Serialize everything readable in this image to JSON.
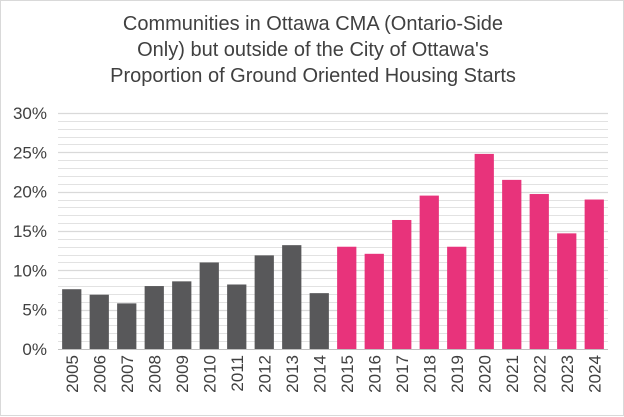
{
  "chart_data": {
    "type": "bar",
    "title_lines": [
      "Communities in Ottawa CMA (Ontario-Side",
      "Only) but outside of the City of Ottawa's",
      "Proportion of Ground Oriented Housing Starts"
    ],
    "xlabel": "",
    "ylabel": "",
    "ylim": [
      0,
      30
    ],
    "yticks": [
      0,
      5,
      10,
      15,
      20,
      25,
      30
    ],
    "ytick_labels": [
      "0%",
      "5%",
      "10%",
      "15%",
      "20%",
      "25%",
      "30%"
    ],
    "grid": true,
    "legend": "none",
    "categories": [
      "2005",
      "2006",
      "2007",
      "2008",
      "2009",
      "2010",
      "2011",
      "2012",
      "2013",
      "2014",
      "2015",
      "2016",
      "2017",
      "2018",
      "2019",
      "2020",
      "2021",
      "2022",
      "2023",
      "2024"
    ],
    "values": [
      7.6,
      6.9,
      5.8,
      8.0,
      8.6,
      11.0,
      8.2,
      11.9,
      13.2,
      7.1,
      13.0,
      12.1,
      16.4,
      19.5,
      13.0,
      24.8,
      21.5,
      19.7,
      14.7,
      19.0
    ],
    "colors": [
      "#58585a",
      "#58585a",
      "#58585a",
      "#58585a",
      "#58585a",
      "#58585a",
      "#58585a",
      "#58585a",
      "#58585a",
      "#58585a",
      "#e8337b",
      "#e8337b",
      "#e8337b",
      "#e8337b",
      "#e8337b",
      "#e8337b",
      "#e8337b",
      "#e8337b",
      "#e8337b",
      "#e8337b"
    ],
    "grid_color": "#d9d9d9",
    "axis_color": "#bfbfbf"
  }
}
